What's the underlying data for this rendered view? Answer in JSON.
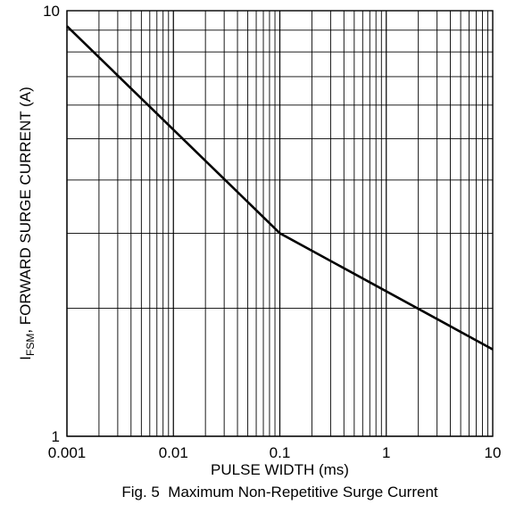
{
  "chart_data": {
    "type": "line",
    "title": "",
    "xlabel": "PULSE WIDTH (ms)",
    "ylabel": {
      "prefix": "I",
      "subscript": "FSM",
      "suffix": ", FORWARD SURGE CURRENT (A)"
    },
    "caption": "Fig. 5  Maximum Non-Repetitive Surge Current",
    "x_scale": "log",
    "y_scale": "log",
    "xlim": [
      0.001,
      10
    ],
    "ylim": [
      1,
      10
    ],
    "x_tick_labels": [
      "0.001",
      "0.01",
      "0.1",
      "1",
      "10"
    ],
    "y_tick_labels": [
      "1",
      "10"
    ],
    "grid": true,
    "series": [
      {
        "x": [
          0.001,
          0.1,
          10
        ],
        "y": [
          9.2,
          3.0,
          1.6
        ]
      }
    ]
  },
  "colors": {
    "line": "#000000",
    "grid": "#000000",
    "background": "#ffffff"
  }
}
